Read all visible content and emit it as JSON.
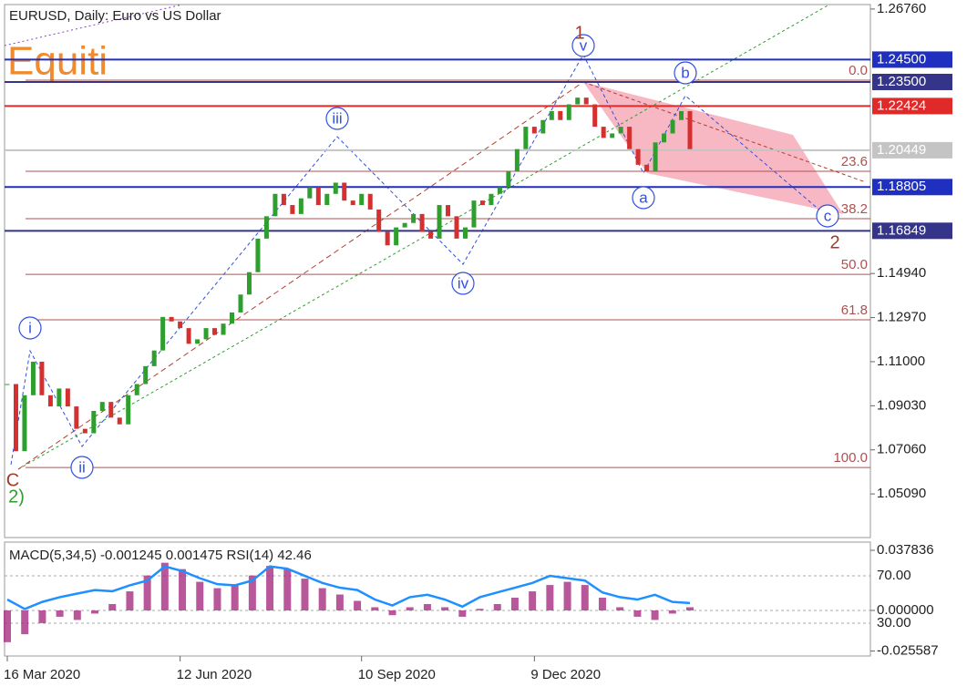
{
  "chart_data": {
    "type": "candlestick",
    "title": "EURUSD, Daily:  Euro vs US Dollar",
    "watermark": "Equiti",
    "categories": [
      "16 Mar 2020",
      null,
      null,
      null,
      null,
      null,
      null,
      null,
      null,
      null,
      null,
      null,
      null,
      null,
      null,
      null,
      null,
      null,
      null,
      null,
      "12 Jun 2020",
      null,
      null,
      null,
      null,
      null,
      null,
      null,
      null,
      null,
      null,
      null,
      null,
      null,
      null,
      null,
      null,
      null,
      null,
      null,
      null,
      "10 Sep 2020",
      null,
      null,
      null,
      null,
      null,
      null,
      null,
      null,
      null,
      null,
      null,
      null,
      null,
      null,
      null,
      null,
      null,
      null,
      null,
      "9 Dec 2020",
      null,
      null,
      null,
      null,
      null,
      null,
      null,
      null,
      null,
      null,
      null,
      null,
      null,
      null,
      null,
      null,
      null,
      null
    ],
    "values": [
      1.1,
      1.07,
      1.095,
      1.11,
      1.095,
      1.09,
      1.098,
      1.09,
      1.08,
      1.078,
      1.088,
      1.092,
      1.085,
      1.082,
      1.095,
      1.1,
      1.108,
      1.115,
      1.13,
      1.128,
      1.125,
      1.118,
      1.12,
      1.125,
      1.122,
      1.127,
      1.132,
      1.14,
      1.15,
      1.165,
      1.175,
      1.185,
      1.18,
      1.176,
      1.183,
      1.188,
      1.18,
      1.185,
      1.19,
      1.182,
      1.18,
      1.185,
      1.178,
      1.168,
      1.162,
      1.17,
      1.172,
      1.176,
      1.168,
      1.165,
      1.18,
      1.175,
      1.165,
      1.17,
      1.182,
      1.18,
      1.185,
      1.188,
      1.195,
      1.205,
      1.215,
      1.212,
      1.218,
      1.222,
      1.218,
      1.225,
      1.228,
      1.225,
      1.215,
      1.21,
      1.212,
      1.215,
      1.205,
      1.198,
      1.195,
      1.208,
      1.212,
      1.218,
      1.222,
      1.205
    ],
    "up_color": "#2e9e2e",
    "down_color": "#d43030",
    "ylim": [
      1.0314,
      1.2696
    ],
    "yticks": [
      {
        "value": 1.2676,
        "label": "1.26760"
      },
      {
        "value": 1.1494,
        "label": "1.14940"
      },
      {
        "value": 1.1297,
        "label": "1.12970"
      },
      {
        "value": 1.11,
        "label": "1.11000"
      },
      {
        "value": 1.0903,
        "label": "1.09030"
      },
      {
        "value": 1.0706,
        "label": "1.07060"
      },
      {
        "value": 1.0509,
        "label": "1.05090"
      }
    ],
    "levels": [
      {
        "value": 1.245,
        "label": "1.24500",
        "color": "#1f2fbf"
      },
      {
        "value": 1.235,
        "label": "1.23500",
        "color": "#34348a"
      },
      {
        "value": 1.22424,
        "label": "1.22424",
        "color": "#e02a2a"
      },
      {
        "value": 1.20449,
        "label": "1.20449",
        "color": "#c4c4c4"
      },
      {
        "value": 1.18805,
        "label": "1.18805",
        "color": "#1f2fbf"
      },
      {
        "value": 1.16849,
        "label": "1.16849",
        "color": "#34348a"
      }
    ],
    "fib": [
      {
        "label": "0.0",
        "value": 1.2358
      },
      {
        "label": "23.6",
        "value": 1.1951
      },
      {
        "label": "38.2",
        "value": 1.1739
      },
      {
        "label": "50.0",
        "value": 1.149
      },
      {
        "label": "61.8",
        "value": 1.1287
      },
      {
        "label": "100.0",
        "value": 1.0627
      }
    ],
    "annotations": [
      "i",
      "ii",
      "iii",
      "iv",
      "v",
      "a",
      "b",
      "c",
      "1",
      "2",
      "C",
      "2)"
    ],
    "indicator": {
      "label": "MACD(5,34,5) -0.001245 0.001475 RSI(14) 42.46",
      "macd": [
        -0.02,
        -0.015,
        -0.008,
        -0.004,
        -0.006,
        -0.002,
        0.004,
        0.012,
        0.022,
        0.03,
        0.026,
        0.018,
        0.014,
        0.016,
        0.022,
        0.028,
        0.026,
        0.02,
        0.014,
        0.01,
        0.006,
        0.002,
        -0.003,
        0.002,
        0.004,
        0.002,
        -0.004,
        0.001,
        0.004,
        0.008,
        0.012,
        0.016,
        0.018,
        0.016,
        0.008,
        0.002,
        -0.004,
        -0.006,
        -0.002,
        0.002
      ],
      "rsi": [
        50,
        42,
        48,
        52,
        55,
        58,
        57,
        62,
        66,
        78,
        74,
        68,
        63,
        62,
        66,
        78,
        76,
        70,
        64,
        60,
        58,
        50,
        45,
        52,
        54,
        50,
        44,
        52,
        56,
        60,
        64,
        70,
        68,
        66,
        56,
        52,
        50,
        54,
        48,
        47
      ],
      "macd_color": "#a0207a",
      "rsi_color": "#1e90ff",
      "y2lim": [
        -0.0287,
        0.043
      ],
      "y2ticks": [
        0.037836,
        {
          "value": 0,
          "label": "0.000000"
        },
        -0.025587
      ],
      "ylim": [
        2.3,
        98.5
      ],
      "yticks": [
        {
          "value": 70,
          "label": "70.00"
        },
        {
          "value": 30,
          "label": "30.00"
        }
      ]
    }
  }
}
